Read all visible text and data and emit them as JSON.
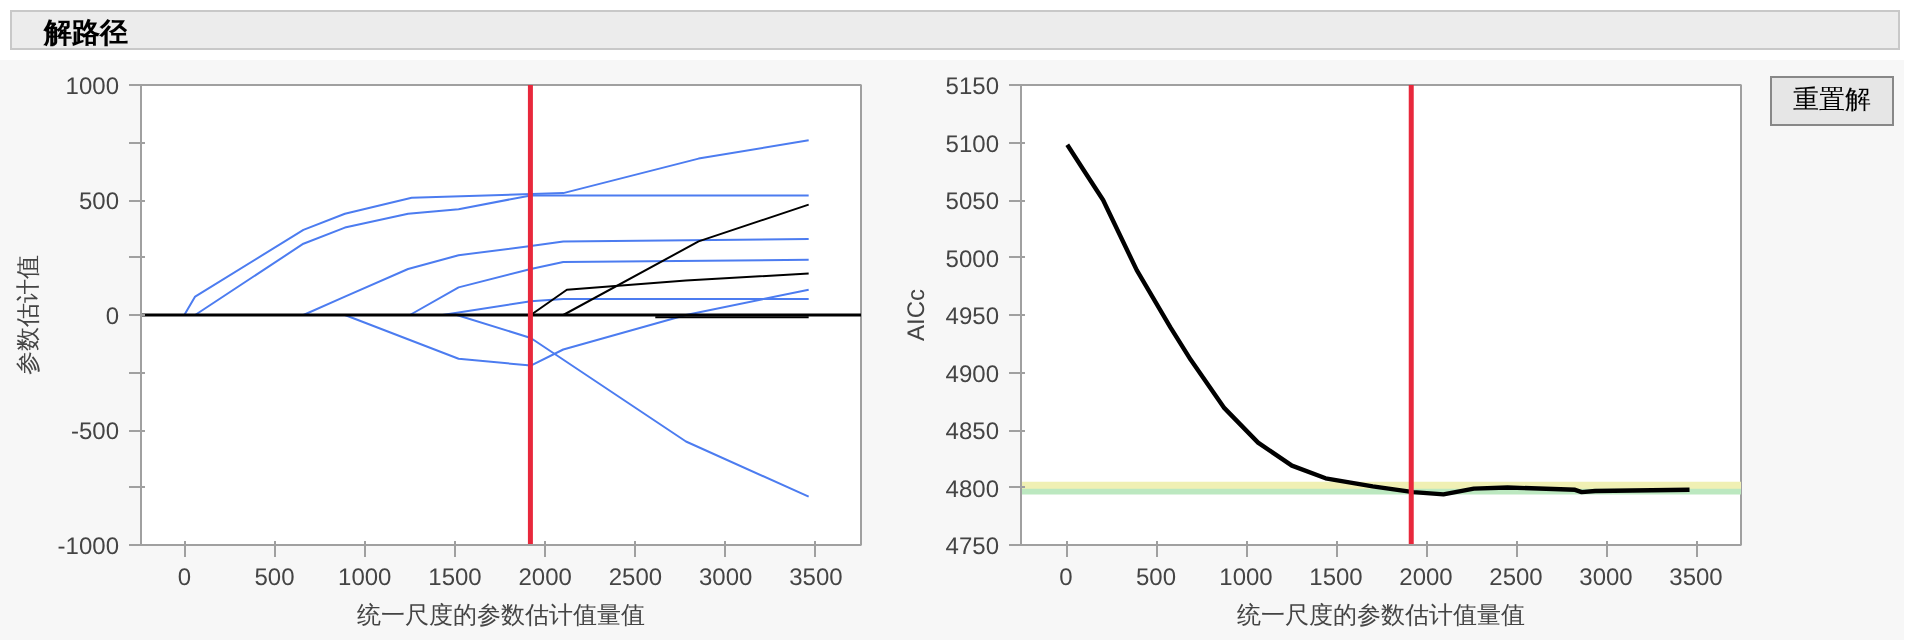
{
  "chart_data": [
    {
      "type": "line",
      "title": "解路径",
      "xlabel": "统一尺度的参数估计值量值",
      "ylabel": "参数估计值",
      "xlim": [
        -240,
        3750
      ],
      "ylim": [
        -1000,
        1000
      ],
      "xticks": [
        0,
        500,
        1000,
        1500,
        2000,
        2500,
        3000,
        3500
      ],
      "yticks": [
        -1000,
        {
          "value": -750,
          "label": null
        },
        -500,
        {
          "value": -250,
          "label": null
        },
        0,
        {
          "value": 250,
          "label": null
        },
        500,
        {
          "value": 750,
          "label": null
        },
        1000
      ],
      "series": [
        {
          "color": "#4c7cf0",
          "x": [
            0,
            60,
            660,
            890,
            1260,
            2100,
            2850,
            3460
          ],
          "values": [
            0,
            80,
            370,
            440,
            510,
            530,
            680,
            760
          ]
        },
        {
          "color": "#4c7cf0",
          "x": [
            60,
            660,
            890,
            1240,
            1520,
            1920,
            3460
          ],
          "values": [
            0,
            310,
            380,
            440,
            460,
            520,
            520
          ]
        },
        {
          "color": "#4c7cf0",
          "x": [
            660,
            890,
            1240,
            1520,
            1920,
            2100,
            3460
          ],
          "values": [
            0,
            80,
            200,
            260,
            300,
            320,
            330
          ]
        },
        {
          "color": "#4c7cf0",
          "x": [
            1250,
            1520,
            1920,
            2100,
            3460
          ],
          "values": [
            0,
            120,
            200,
            230,
            240
          ]
        },
        {
          "color": "#4c7cf0",
          "x": [
            1430,
            1920,
            2100,
            3460
          ],
          "values": [
            0,
            60,
            70,
            70
          ]
        },
        {
          "color": "#4c7cf0",
          "x": [
            890,
            1520,
            1920,
            2100,
            2780,
            3460
          ],
          "values": [
            0,
            -190,
            -220,
            -150,
            0,
            110
          ]
        },
        {
          "color": "#4c7cf0",
          "x": [
            1510,
            1920,
            2780,
            3460
          ],
          "values": [
            0,
            -100,
            -550,
            -790
          ]
        },
        {
          "color": "#000000",
          "x": [
            1920,
            2120,
            2780,
            3460
          ],
          "values": [
            0,
            110,
            150,
            180
          ]
        },
        {
          "color": "#000000",
          "x": [
            2100,
            2850,
            3460
          ],
          "values": [
            0,
            320,
            480
          ]
        },
        {
          "color": "#000000",
          "x": [
            2610,
            3460
          ],
          "values": [
            -10,
            -10
          ]
        }
      ],
      "ref_lines": [
        {
          "axis": "y",
          "value": 0,
          "color": "#000000"
        },
        {
          "axis": "x",
          "value": 1918,
          "color": "#e8283c"
        }
      ]
    },
    {
      "type": "line",
      "xlabel": "统一尺度的参数估计值量值",
      "ylabel": "AICc",
      "xlim": [
        -250,
        3750
      ],
      "ylim": [
        4750,
        5150
      ],
      "xticks": [
        0,
        500,
        1000,
        1500,
        2000,
        2500,
        3000,
        3500
      ],
      "yticks": [
        4750,
        4800,
        4850,
        4900,
        4950,
        5000,
        5050,
        5100,
        5150
      ],
      "series": [
        {
          "color": "#000000",
          "x": [
            7,
            94,
            206,
            393,
            581,
            693,
            880,
            1067,
            1255,
            1442,
            1704,
            1929,
            2097,
            2266,
            2453,
            2828,
            2865,
            2940,
            3464
          ],
          "values": [
            5098,
            5077,
            5050,
            4989,
            4939,
            4911,
            4869,
            4839,
            4819,
            4808,
            4801,
            4796,
            4794,
            4799,
            4800,
            4798,
            4796,
            4797,
            4798
          ]
        }
      ],
      "bands": [
        {
          "axis": "y",
          "from": 4797,
          "to": 4805,
          "color": "#f0f0b4"
        },
        {
          "axis": "y",
          "from": 4794,
          "to": 4799,
          "color": "#bce8c0"
        }
      ],
      "ref_lines": [
        {
          "axis": "x",
          "value": 1918,
          "color": "#e8283c"
        }
      ],
      "annotations": [
        "重置解"
      ]
    }
  ]
}
